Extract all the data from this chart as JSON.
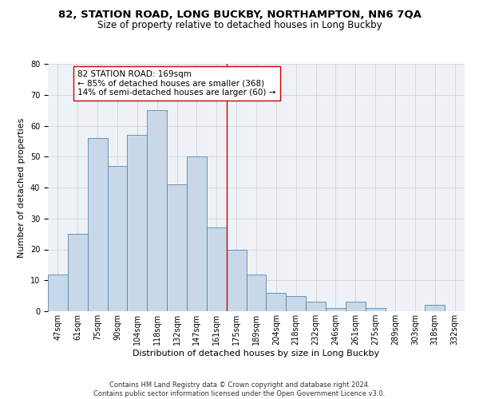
{
  "title": "82, STATION ROAD, LONG BUCKBY, NORTHAMPTON, NN6 7QA",
  "subtitle": "Size of property relative to detached houses in Long Buckby",
  "xlabel": "Distribution of detached houses by size in Long Buckby",
  "ylabel": "Number of detached properties",
  "categories": [
    "47sqm",
    "61sqm",
    "75sqm",
    "90sqm",
    "104sqm",
    "118sqm",
    "132sqm",
    "147sqm",
    "161sqm",
    "175sqm",
    "189sqm",
    "204sqm",
    "218sqm",
    "232sqm",
    "246sqm",
    "261sqm",
    "275sqm",
    "289sqm",
    "303sqm",
    "318sqm",
    "332sqm"
  ],
  "values": [
    12,
    25,
    56,
    47,
    57,
    65,
    41,
    50,
    27,
    20,
    12,
    6,
    5,
    3,
    1,
    3,
    1,
    0,
    0,
    2,
    0
  ],
  "bar_color": "#c8d8e8",
  "bar_edge_color": "#5588aa",
  "vline_x": 8.5,
  "vline_color": "#cc0000",
  "annotation_text": "82 STATION ROAD: 169sqm\n← 85% of detached houses are smaller (368)\n14% of semi-detached houses are larger (60) →",
  "annotation_box_color": "#ffffff",
  "annotation_box_edge_color": "#cc0000",
  "ylim": [
    0,
    80
  ],
  "yticks": [
    0,
    10,
    20,
    30,
    40,
    50,
    60,
    70,
    80
  ],
  "grid_color": "#cccccc",
  "background_color": "#eef2f7",
  "footer": "Contains HM Land Registry data © Crown copyright and database right 2024.\nContains public sector information licensed under the Open Government Licence v3.0.",
  "title_fontsize": 9.5,
  "subtitle_fontsize": 8.5,
  "xlabel_fontsize": 8,
  "ylabel_fontsize": 8,
  "annotation_fontsize": 7.5,
  "footer_fontsize": 6,
  "tick_fontsize": 7
}
